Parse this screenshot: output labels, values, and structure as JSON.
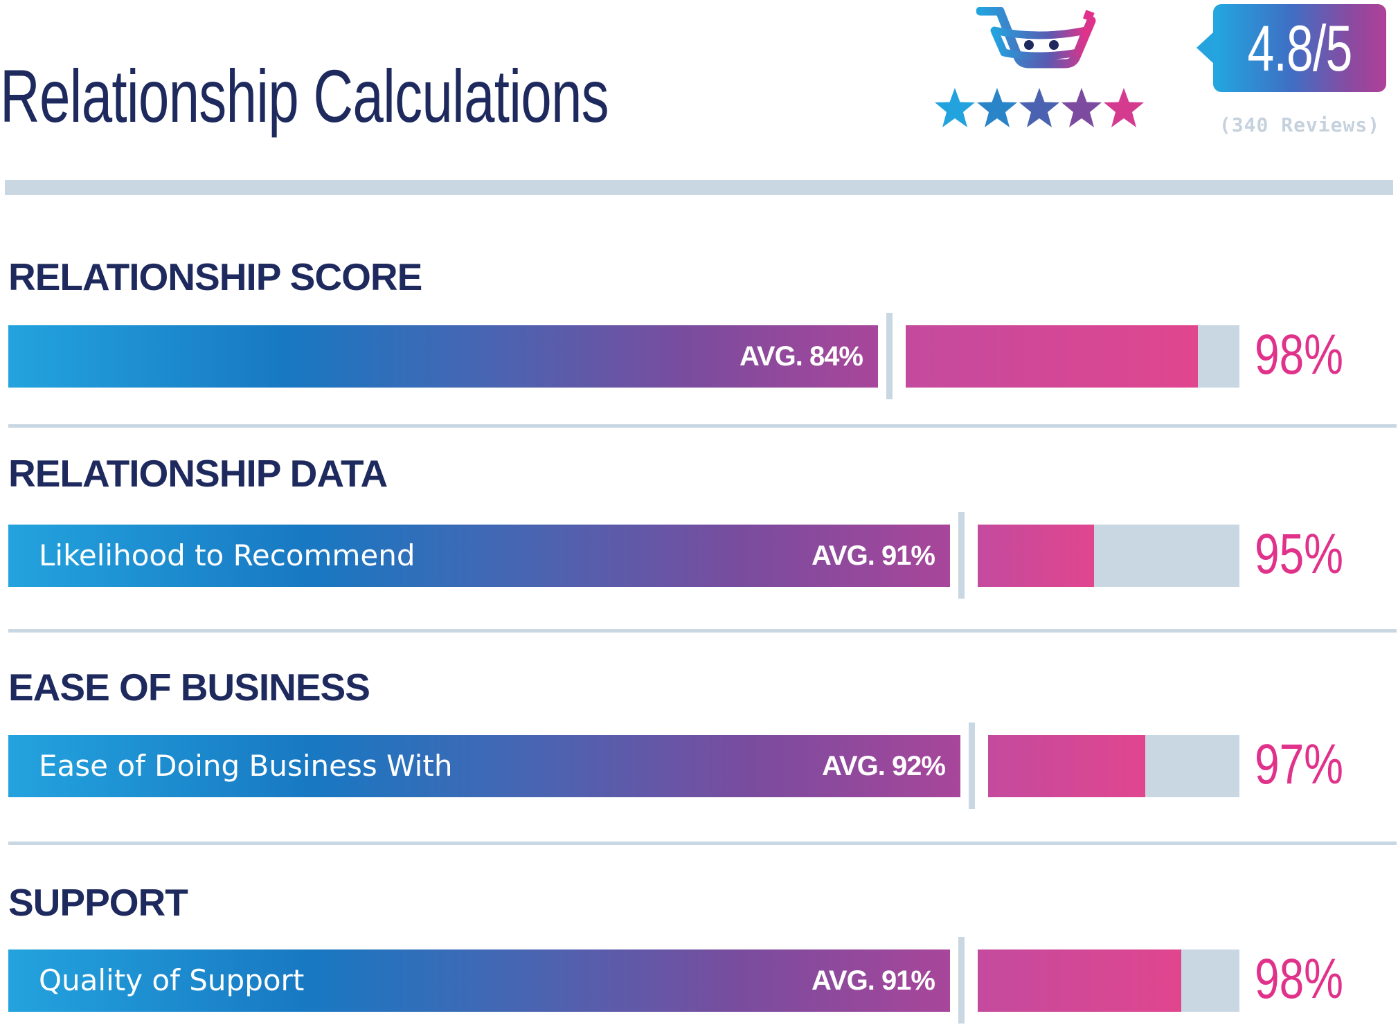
{
  "page_title": "Relationship Calculations",
  "rating": {
    "value": "4.8/5",
    "reviews": "(340 Reviews)",
    "stars": 5
  },
  "colors": {
    "title": "#1e2a5e",
    "accent": "#e0328a",
    "track": "#c9d7e3",
    "gradient_start": "#23a3de",
    "gradient_end": "#a8469a"
  },
  "sections": [
    {
      "heading": "RELATIONSHIP SCORE",
      "label": "",
      "avg_label": "AVG. 84%",
      "score_label": "98%"
    },
    {
      "heading": "RELATIONSHIP DATA",
      "label": "Likelihood to Recommend",
      "avg_label": "AVG. 91%",
      "score_label": "95%"
    },
    {
      "heading": "EASE OF BUSINESS",
      "label": "Ease of Doing Business With",
      "avg_label": "AVG. 92%",
      "score_label": "97%"
    },
    {
      "heading": "SUPPORT",
      "label": "Quality of Support",
      "avg_label": "AVG. 91%",
      "score_label": "98%"
    }
  ],
  "chart_data": {
    "type": "bar",
    "categories": [
      "Relationship Score",
      "Likelihood to Recommend",
      "Ease of Doing Business With",
      "Quality of Support"
    ],
    "series": [
      {
        "name": "AVG.",
        "values": [
          84,
          91,
          92,
          91
        ]
      },
      {
        "values": [
          98,
          95,
          97,
          98
        ]
      }
    ],
    "ylim": [
      0,
      100
    ],
    "title": "Relationship Calculations"
  }
}
